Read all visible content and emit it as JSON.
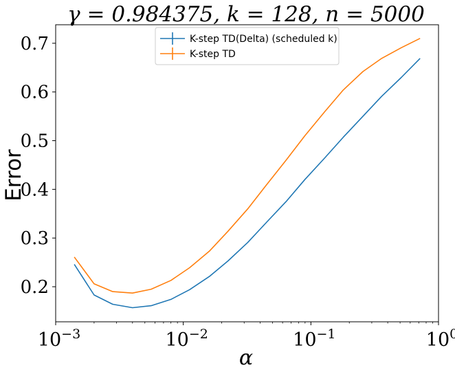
{
  "chart_data": {
    "type": "line",
    "title": "γ = 0.984375, k = 128, n = 5000",
    "xlabel": "α",
    "ylabel": "Error",
    "xscale": "log",
    "xlim": [
      0.001,
      1
    ],
    "ylim": [
      0.128,
      0.738
    ],
    "x_ticks": [
      {
        "value": 0.001,
        "label": "10",
        "exp": "−3"
      },
      {
        "value": 0.01,
        "label": "10",
        "exp": "−2"
      },
      {
        "value": 0.1,
        "label": "10",
        "exp": "−1"
      },
      {
        "value": 1,
        "label": "10",
        "exp": "0"
      }
    ],
    "y_ticks": [
      {
        "value": 0.2,
        "label": "0.2"
      },
      {
        "value": 0.3,
        "label": "0.3"
      },
      {
        "value": 0.4,
        "label": "0.4"
      },
      {
        "value": 0.5,
        "label": "0.5"
      },
      {
        "value": 0.6,
        "label": "0.6"
      },
      {
        "value": 0.7,
        "label": "0.7"
      }
    ],
    "grid": false,
    "legend_position": "top-center",
    "x": [
      0.0014,
      0.002,
      0.0028,
      0.004,
      0.0056,
      0.008,
      0.0112,
      0.016,
      0.0224,
      0.032,
      0.0448,
      0.064,
      0.0896,
      0.128,
      0.1792,
      0.256,
      0.3584,
      0.512,
      0.7168
    ],
    "series": [
      {
        "name": "K-step TD(Delta) (scheduled k)",
        "color": "#1f77b4",
        "values": [
          0.246,
          0.183,
          0.164,
          0.157,
          0.161,
          0.174,
          0.194,
          0.221,
          0.253,
          0.291,
          0.332,
          0.375,
          0.42,
          0.464,
          0.507,
          0.55,
          0.591,
          0.63,
          0.669
        ]
      },
      {
        "name": "K-step TD",
        "color": "#ff7f0e",
        "values": [
          0.261,
          0.206,
          0.19,
          0.187,
          0.195,
          0.213,
          0.239,
          0.273,
          0.314,
          0.36,
          0.409,
          0.46,
          0.51,
          0.559,
          0.604,
          0.642,
          0.669,
          0.691,
          0.71
        ]
      }
    ]
  }
}
